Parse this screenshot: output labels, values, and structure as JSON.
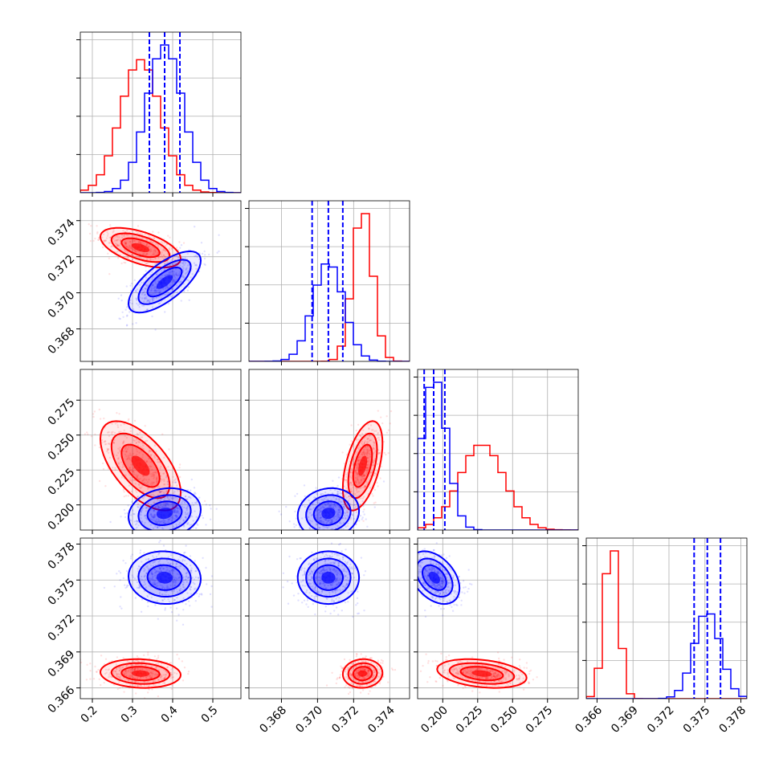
{
  "chart_data": {
    "type": "corner",
    "grid": true,
    "colors": {
      "red_series": "#ff0000",
      "blue_series": "#0000ff",
      "grid": "#b0b0b0",
      "axes": "#000000"
    },
    "series": [
      {
        "color": "#ff0000",
        "means": [
          0.32,
          0.3725,
          0.228,
          0.3672
        ],
        "sds": [
          0.05,
          0.00055,
          0.016,
          0.0006
        ],
        "correlations": {
          "1-0": -0.55,
          "2-0": -0.6,
          "2-1": 0.5,
          "3-0": -0.1,
          "3-1": 0.05,
          "3-2": -0.3
        }
      },
      {
        "color": "#0000ff",
        "means": [
          0.38,
          0.3706,
          0.194,
          0.3752
        ],
        "sds": [
          0.045,
          0.00085,
          0.009,
          0.0011
        ],
        "correlations": {
          "1-0": 0.7,
          "2-0": 0.15,
          "2-1": 0.1,
          "3-0": -0.05,
          "3-1": 0.0,
          "3-2": -0.4
        }
      }
    ],
    "quantile_lines": {
      "color": "#0000ff",
      "values": [
        [
          0.342,
          0.38,
          0.418
        ],
        [
          0.3697,
          0.3706,
          0.3714
        ],
        [
          0.1867,
          0.1935,
          0.2015
        ],
        [
          0.3741,
          0.3752,
          0.3763
        ]
      ]
    },
    "param_ranges": [
      [
        0.17,
        0.57
      ],
      [
        0.3662,
        0.3751
      ],
      [
        0.182,
        0.297
      ],
      [
        0.3651,
        0.3785
      ]
    ],
    "x_ticks": [
      [
        "0.2",
        "0.3",
        "0.4",
        "0.5"
      ],
      [
        "0.368",
        "0.370",
        "0.372",
        "0.374"
      ],
      [
        "0.200",
        "0.225",
        "0.250",
        "0.275"
      ],
      [
        "0.366",
        "0.369",
        "0.372",
        "0.375",
        "0.378"
      ]
    ],
    "x_tick_values": [
      [
        0.2,
        0.3,
        0.4,
        0.5
      ],
      [
        0.368,
        0.37,
        0.372,
        0.374
      ],
      [
        0.2,
        0.225,
        0.25,
        0.275
      ],
      [
        0.366,
        0.369,
        0.372,
        0.375,
        0.378
      ]
    ],
    "y_ticks": [
      [
        "0.368",
        "0.370",
        "0.372",
        "0.374"
      ],
      [
        "0.200",
        "0.225",
        "0.250",
        "0.275"
      ],
      [
        "0.366",
        "0.369",
        "0.372",
        "0.375",
        "0.378"
      ]
    ],
    "y_tick_values": [
      [
        0.368,
        0.37,
        0.372,
        0.374
      ],
      [
        0.2,
        0.225,
        0.25,
        0.275
      ],
      [
        0.366,
        0.369,
        0.372,
        0.375,
        0.378
      ]
    ],
    "histogram_bins": 20
  }
}
